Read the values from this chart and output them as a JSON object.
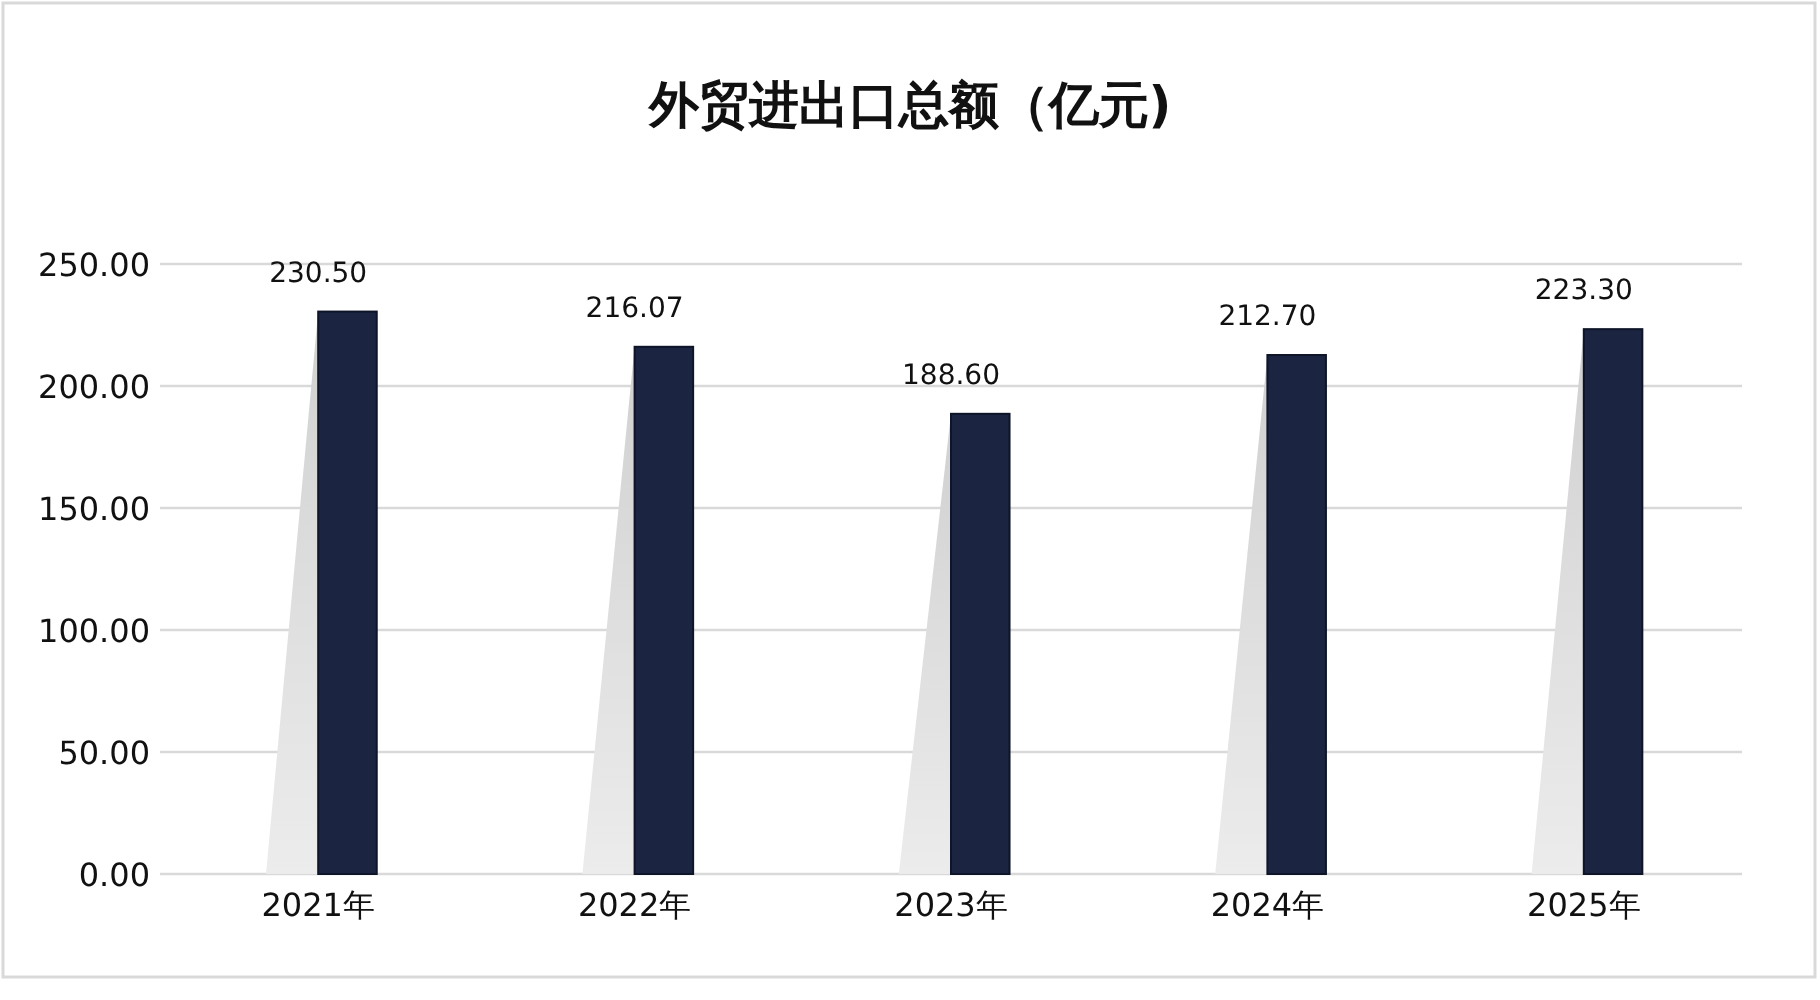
{
  "chart_data": {
    "type": "bar",
    "title": "外贸进出口总额（亿元)",
    "categories": [
      "2021年",
      "2022年",
      "2023年",
      "2024年",
      "2025年"
    ],
    "values": [
      230.5,
      216.07,
      188.6,
      212.7,
      223.3
    ],
    "color": "#1b2541",
    "value_labels": [
      "230.50",
      "216.07",
      "188.60",
      "212.70",
      "223.30"
    ],
    "ylim": [
      0,
      250
    ],
    "yticks": [
      {
        "value": 0,
        "label": "0.00"
      },
      {
        "value": 50,
        "label": "50.00"
      },
      {
        "value": 100,
        "label": "100.00"
      },
      {
        "value": 150,
        "label": "150.00"
      },
      {
        "value": 200,
        "label": "200.00"
      },
      {
        "value": 250,
        "label": "250.00"
      }
    ],
    "grid": "y"
  }
}
